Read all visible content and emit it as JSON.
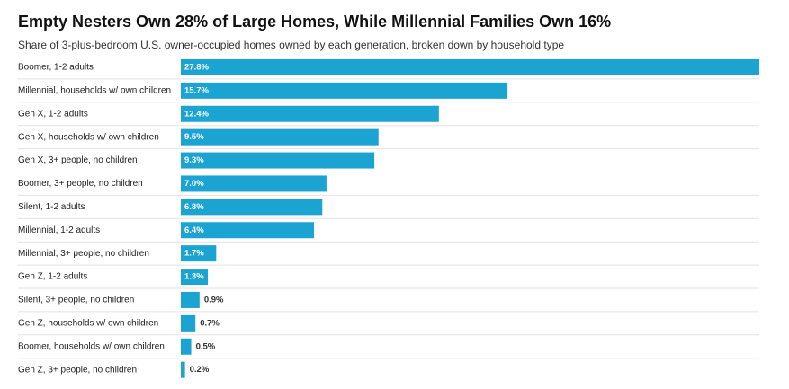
{
  "chart_data": {
    "type": "bar",
    "orientation": "horizontal",
    "title": "Empty Nesters Own 28% of Large Homes, While Millennial Families Own 16%",
    "subtitle": "Share of 3-plus-bedroom U.S. owner-occupied homes owned by each generation, broken down by household type",
    "color": "#1ba3d1",
    "categories": [
      "Boomer, 1-2 adults",
      "Millennial, households w/ own children",
      "Gen X, 1-2 adults",
      "Gen X, households w/ own children",
      "Gen X, 3+ people, no children",
      "Boomer, 3+ people, no children",
      "Silent, 1-2 adults",
      "Millennial, 1-2 adults",
      "Millennial, 3+ people, no children",
      "Gen Z, 1-2 adults",
      "Silent, 3+ people, no children",
      "Gen Z, households w/ own children",
      "Boomer, households w/ own children",
      "Gen Z, 3+ people, no children"
    ],
    "values": [
      27.8,
      15.7,
      12.4,
      9.5,
      9.3,
      7.0,
      6.8,
      6.4,
      1.7,
      1.3,
      0.9,
      0.7,
      0.5,
      0.2
    ],
    "value_labels": [
      "27.8%",
      "15.7%",
      "12.4%",
      "9.5%",
      "9.3%",
      "7.0%",
      "6.8%",
      "6.4%",
      "1.7%",
      "1.3%",
      "0.9%",
      "0.7%",
      "0.5%",
      "0.2%"
    ]
  }
}
